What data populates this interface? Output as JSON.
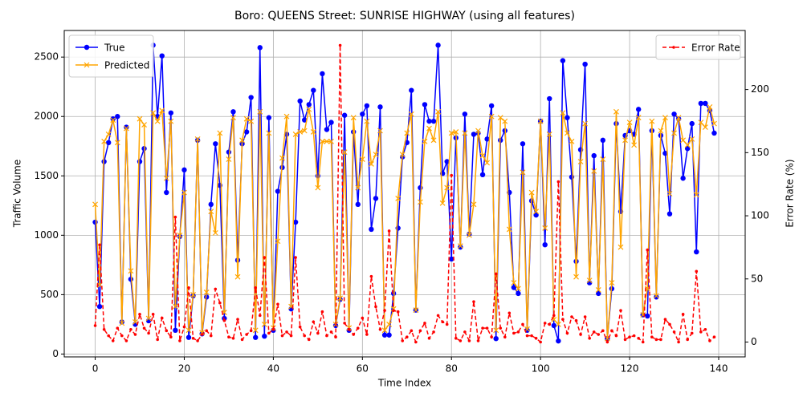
{
  "chart_data": {
    "type": "line",
    "title": "Boro: QUEENS Street: SUNRISE HIGHWAY (using all features)",
    "xlabel": "Time Index",
    "ylabel": "Traffic Volume",
    "y2label": "Error Rate (%)",
    "x": [
      0,
      1,
      2,
      3,
      4,
      5,
      6,
      7,
      8,
      9,
      10,
      11,
      12,
      13,
      14,
      15,
      16,
      17,
      18,
      19,
      20,
      21,
      22,
      23,
      24,
      25,
      26,
      27,
      28,
      29,
      30,
      31,
      32,
      33,
      34,
      35,
      36,
      37,
      38,
      39,
      40,
      41,
      42,
      43,
      44,
      45,
      46,
      47,
      48,
      49,
      50,
      51,
      52,
      53,
      54,
      55,
      56,
      57,
      58,
      59,
      60,
      61,
      62,
      63,
      64,
      65,
      66,
      67,
      68,
      69,
      70,
      71,
      72,
      73,
      74,
      75,
      76,
      77,
      78,
      79,
      80,
      81,
      82,
      83,
      84,
      85,
      86,
      87,
      88,
      89,
      90,
      91,
      92,
      93,
      94,
      95,
      96,
      97,
      98,
      99,
      100,
      101,
      102,
      103,
      104,
      105,
      106,
      107,
      108,
      109,
      110,
      111,
      112,
      113,
      114,
      115,
      116,
      117,
      118,
      119,
      120,
      121,
      122,
      123,
      124,
      125,
      126,
      127,
      128,
      129,
      130,
      131,
      132,
      133,
      134,
      135,
      136,
      137,
      138,
      139
    ],
    "xlim": [
      -6.95,
      145.95
    ],
    "xticks": [
      0,
      20,
      40,
      60,
      80,
      100,
      120,
      140
    ],
    "ylim": [
      -24,
      2724
    ],
    "yticks": [
      0,
      500,
      1000,
      1500,
      2000,
      2500
    ],
    "y2lim": [
      -11.75,
      246.75
    ],
    "y2ticks": [
      0,
      50,
      100,
      150,
      200
    ],
    "grid": true,
    "legend_loc": "upper left",
    "legend2_loc": "upper right",
    "series": [
      {
        "name": "True",
        "color": "#0000ff",
        "marker": "o",
        "linestyle": "solid",
        "axis": "y",
        "values": [
          1110,
          400,
          1620,
          1780,
          1980,
          2000,
          270,
          1910,
          630,
          250,
          1620,
          1730,
          280,
          2600,
          2000,
          2510,
          1360,
          2030,
          200,
          990,
          1550,
          140,
          490,
          1800,
          170,
          480,
          1260,
          1770,
          1420,
          300,
          1700,
          2040,
          790,
          1770,
          1870,
          2160,
          140,
          2580,
          150,
          1990,
          200,
          1370,
          1570,
          1850,
          380,
          1110,
          2130,
          1970,
          2100,
          2220,
          1500,
          2360,
          1890,
          1950,
          240,
          460,
          2010,
          200,
          1870,
          1260,
          2020,
          2090,
          1050,
          1310,
          2080,
          160,
          160,
          510,
          1060,
          1660,
          1780,
          2220,
          370,
          1400,
          2100,
          1960,
          1960,
          2600,
          1520,
          1620,
          800,
          1820,
          900,
          2020,
          1010,
          1850,
          1860,
          1510,
          1810,
          2090,
          130,
          1800,
          1880,
          1360,
          560,
          510,
          1770,
          200,
          1290,
          1170,
          1960,
          920,
          2150,
          240,
          110,
          2470,
          1990,
          1490,
          780,
          1720,
          2440,
          600,
          1670,
          510,
          1800,
          130,
          550,
          1940,
          1200,
          1840,
          1880,
          1850,
          2060,
          330,
          320,
          1880,
          480,
          1840,
          1690,
          1180,
          2020,
          1980,
          1480,
          1730,
          1940,
          860,
          2110,
          2110,
          2050,
          1860
        ]
      },
      {
        "name": "Predicted",
        "color": "#ffa500",
        "marker": "x",
        "linestyle": "solid",
        "axis": "y",
        "values": [
          1260,
          580,
          1790,
          1850,
          1970,
          1780,
          260,
          1900,
          700,
          270,
          1980,
          1930,
          300,
          2030,
          1960,
          2050,
          1480,
          1960,
          400,
          1000,
          1360,
          200,
          500,
          1810,
          180,
          520,
          1200,
          1020,
          1860,
          350,
          1640,
          1990,
          650,
          1800,
          1980,
          1960,
          200,
          2040,
          250,
          1860,
          220,
          950,
          1650,
          2000,
          400,
          1850,
          1870,
          1880,
          2060,
          1870,
          1400,
          1790,
          1790,
          1790,
          250,
          470,
          1700,
          220,
          1990,
          1400,
          1640,
          1960,
          1600,
          1680,
          1880,
          200,
          250,
          380,
          1310,
          1680,
          1860,
          2020,
          370,
          1280,
          1790,
          1900,
          1800,
          2040,
          1270,
          1400,
          1860,
          1870,
          910,
          1860,
          1000,
          1260,
          1880,
          1670,
          1610,
          2000,
          200,
          1990,
          1960,
          1050,
          600,
          550,
          1530,
          210,
          1360,
          1200,
          1960,
          1060,
          1850,
          290,
          250,
          2030,
          1860,
          1790,
          650,
          1620,
          1940,
          620,
          1540,
          540,
          1640,
          130,
          600,
          2040,
          900,
          1800,
          1950,
          1760,
          1990,
          330,
          550,
          1960,
          490,
          1880,
          1990,
          1350,
          1860,
          1990,
          1800,
          1760,
          1810,
          1340,
          1950,
          1910,
          2080,
          1940
        ]
      },
      {
        "name": "Error Rate",
        "color": "#ff0000",
        "marker": ".",
        "linestyle": "dashed",
        "axis": "y2",
        "values": [
          13,
          77,
          10,
          5,
          1,
          11,
          5,
          1,
          10,
          6,
          22,
          11,
          7,
          22,
          2,
          19,
          9,
          4,
          99,
          1,
          12,
          43,
          3,
          1,
          6,
          9,
          5,
          42,
          31,
          17,
          4,
          3,
          18,
          2,
          6,
          9,
          43,
          21,
          67,
          7,
          10,
          30,
          5,
          8,
          5,
          67,
          12,
          5,
          2,
          16,
          7,
          24,
          5,
          8,
          4,
          235,
          15,
          10,
          6,
          11,
          19,
          6,
          52,
          28,
          10,
          25,
          88,
          25,
          24,
          1,
          4,
          9,
          0,
          9,
          15,
          3,
          8,
          21,
          16,
          14,
          132,
          3,
          1,
          8,
          1,
          32,
          1,
          11,
          11,
          4,
          54,
          11,
          4,
          23,
          7,
          8,
          14,
          5,
          5,
          3,
          0,
          15,
          14,
          21,
          127,
          18,
          7,
          20,
          17,
          6,
          20,
          3,
          8,
          6,
          9,
          0,
          9,
          5,
          25,
          2,
          4,
          5,
          3,
          0,
          73,
          4,
          2,
          2,
          18,
          14,
          8,
          0,
          22,
          2,
          7,
          56,
          8,
          10,
          1,
          4
        ]
      }
    ]
  }
}
